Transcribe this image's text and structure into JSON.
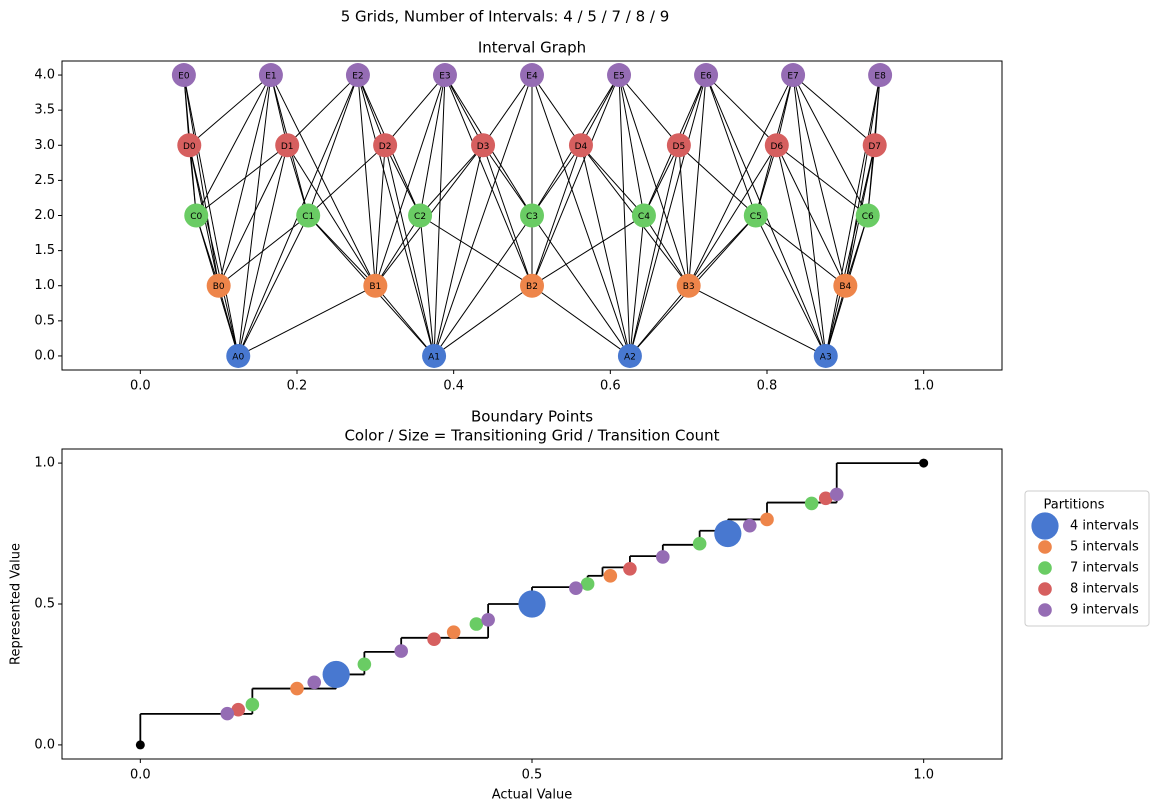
{
  "title": "5 Grids, Number of Intervals: 4 / 5 / 7 / 8 / 9",
  "chart_data": [
    {
      "type": "graph",
      "title": "Interval Graph",
      "xlim": [
        -0.1,
        1.1
      ],
      "ylim": [
        -0.2,
        4.2
      ],
      "xticks": [
        {
          "value": 0,
          "label": "0.0"
        },
        0.2,
        0.4,
        0.6,
        0.8,
        {
          "value": 1,
          "label": "1.0"
        }
      ],
      "yticks": [
        {
          "value": 0,
          "label": "0.0"
        },
        0.5,
        {
          "value": 1,
          "label": "1.0"
        },
        1.5,
        {
          "value": 2,
          "label": "2.0"
        },
        2.5,
        {
          "value": 3,
          "label": "3.0"
        },
        3.5,
        {
          "value": 4,
          "label": "4.0"
        }
      ],
      "nodes": [
        {
          "label": "A0",
          "x": 0.125,
          "y": 0,
          "color": "#4878d0"
        },
        {
          "label": "A1",
          "x": 0.375,
          "y": 0,
          "color": "#4878d0"
        },
        {
          "label": "A2",
          "x": 0.625,
          "y": 0,
          "color": "#4878d0"
        },
        {
          "label": "A3",
          "x": 0.875,
          "y": 0,
          "color": "#4878d0"
        },
        {
          "label": "B0",
          "x": 0.1,
          "y": 1,
          "color": "#ee854a"
        },
        {
          "label": "B1",
          "x": 0.3,
          "y": 1,
          "color": "#ee854a"
        },
        {
          "label": "B2",
          "x": 0.5,
          "y": 1,
          "color": "#ee854a"
        },
        {
          "label": "B3",
          "x": 0.7,
          "y": 1,
          "color": "#ee854a"
        },
        {
          "label": "B4",
          "x": 0.9,
          "y": 1,
          "color": "#ee854a"
        },
        {
          "label": "C0",
          "x": 0.0714,
          "y": 2,
          "color": "#6acc64"
        },
        {
          "label": "C1",
          "x": 0.2143,
          "y": 2,
          "color": "#6acc64"
        },
        {
          "label": "C2",
          "x": 0.3571,
          "y": 2,
          "color": "#6acc64"
        },
        {
          "label": "C3",
          "x": 0.5,
          "y": 2,
          "color": "#6acc64"
        },
        {
          "label": "C4",
          "x": 0.6429,
          "y": 2,
          "color": "#6acc64"
        },
        {
          "label": "C5",
          "x": 0.7857,
          "y": 2,
          "color": "#6acc64"
        },
        {
          "label": "C6",
          "x": 0.9286,
          "y": 2,
          "color": "#6acc64"
        },
        {
          "label": "D0",
          "x": 0.0625,
          "y": 3,
          "color": "#d65f5f"
        },
        {
          "label": "D1",
          "x": 0.1875,
          "y": 3,
          "color": "#d65f5f"
        },
        {
          "label": "D2",
          "x": 0.3125,
          "y": 3,
          "color": "#d65f5f"
        },
        {
          "label": "D3",
          "x": 0.4375,
          "y": 3,
          "color": "#d65f5f"
        },
        {
          "label": "D4",
          "x": 0.5625,
          "y": 3,
          "color": "#d65f5f"
        },
        {
          "label": "D5",
          "x": 0.6875,
          "y": 3,
          "color": "#d65f5f"
        },
        {
          "label": "D6",
          "x": 0.8125,
          "y": 3,
          "color": "#d65f5f"
        },
        {
          "label": "D7",
          "x": 0.9375,
          "y": 3,
          "color": "#d65f5f"
        },
        {
          "label": "E0",
          "x": 0.0556,
          "y": 4,
          "color": "#956cb4"
        },
        {
          "label": "E1",
          "x": 0.1667,
          "y": 4,
          "color": "#956cb4"
        },
        {
          "label": "E2",
          "x": 0.2778,
          "y": 4,
          "color": "#956cb4"
        },
        {
          "label": "E3",
          "x": 0.3889,
          "y": 4,
          "color": "#956cb4"
        },
        {
          "label": "E4",
          "x": 0.5,
          "y": 4,
          "color": "#956cb4"
        },
        {
          "label": "E5",
          "x": 0.6111,
          "y": 4,
          "color": "#956cb4"
        },
        {
          "label": "E6",
          "x": 0.7222,
          "y": 4,
          "color": "#956cb4"
        },
        {
          "label": "E7",
          "x": 0.8333,
          "y": 4,
          "color": "#956cb4"
        },
        {
          "label": "E8",
          "x": 0.9444,
          "y": 4,
          "color": "#956cb4"
        }
      ],
      "edges": [
        [
          0,
          4
        ],
        [
          0,
          5
        ],
        [
          1,
          5
        ],
        [
          1,
          6
        ],
        [
          2,
          6
        ],
        [
          2,
          7
        ],
        [
          3,
          7
        ],
        [
          3,
          8
        ],
        [
          0,
          9
        ],
        [
          0,
          10
        ],
        [
          1,
          10
        ],
        [
          1,
          11
        ],
        [
          1,
          12
        ],
        [
          2,
          12
        ],
        [
          2,
          13
        ],
        [
          2,
          14
        ],
        [
          3,
          14
        ],
        [
          3,
          15
        ],
        [
          0,
          16
        ],
        [
          0,
          17
        ],
        [
          1,
          18
        ],
        [
          1,
          19
        ],
        [
          2,
          20
        ],
        [
          2,
          21
        ],
        [
          3,
          22
        ],
        [
          3,
          23
        ],
        [
          0,
          24
        ],
        [
          0,
          25
        ],
        [
          0,
          26
        ],
        [
          1,
          26
        ],
        [
          1,
          27
        ],
        [
          1,
          28
        ],
        [
          2,
          28
        ],
        [
          2,
          29
        ],
        [
          2,
          30
        ],
        [
          3,
          30
        ],
        [
          3,
          31
        ],
        [
          3,
          32
        ],
        [
          4,
          9
        ],
        [
          4,
          10
        ],
        [
          5,
          10
        ],
        [
          5,
          11
        ],
        [
          6,
          11
        ],
        [
          6,
          12
        ],
        [
          6,
          13
        ],
        [
          7,
          13
        ],
        [
          7,
          14
        ],
        [
          8,
          14
        ],
        [
          8,
          15
        ],
        [
          4,
          16
        ],
        [
          4,
          17
        ],
        [
          5,
          17
        ],
        [
          5,
          18
        ],
        [
          5,
          19
        ],
        [
          6,
          19
        ],
        [
          6,
          20
        ],
        [
          7,
          20
        ],
        [
          7,
          21
        ],
        [
          7,
          22
        ],
        [
          8,
          22
        ],
        [
          8,
          23
        ],
        [
          4,
          24
        ],
        [
          4,
          25
        ],
        [
          5,
          25
        ],
        [
          5,
          26
        ],
        [
          5,
          27
        ],
        [
          6,
          27
        ],
        [
          6,
          28
        ],
        [
          6,
          29
        ],
        [
          7,
          29
        ],
        [
          7,
          30
        ],
        [
          7,
          31
        ],
        [
          8,
          31
        ],
        [
          8,
          32
        ],
        [
          9,
          16
        ],
        [
          9,
          17
        ],
        [
          10,
          17
        ],
        [
          10,
          18
        ],
        [
          11,
          18
        ],
        [
          11,
          19
        ],
        [
          12,
          19
        ],
        [
          12,
          20
        ],
        [
          13,
          20
        ],
        [
          13,
          21
        ],
        [
          14,
          21
        ],
        [
          14,
          22
        ],
        [
          15,
          22
        ],
        [
          15,
          23
        ],
        [
          9,
          24
        ],
        [
          9,
          25
        ],
        [
          10,
          25
        ],
        [
          10,
          26
        ],
        [
          11,
          26
        ],
        [
          11,
          27
        ],
        [
          12,
          27
        ],
        [
          12,
          28
        ],
        [
          12,
          29
        ],
        [
          13,
          29
        ],
        [
          13,
          30
        ],
        [
          14,
          30
        ],
        [
          14,
          31
        ],
        [
          15,
          31
        ],
        [
          15,
          32
        ],
        [
          16,
          24
        ],
        [
          16,
          25
        ],
        [
          17,
          25
        ],
        [
          17,
          26
        ],
        [
          18,
          26
        ],
        [
          18,
          27
        ],
        [
          19,
          27
        ],
        [
          19,
          28
        ],
        [
          20,
          28
        ],
        [
          20,
          29
        ],
        [
          21,
          29
        ],
        [
          21,
          30
        ],
        [
          22,
          30
        ],
        [
          22,
          31
        ],
        [
          23,
          31
        ],
        [
          23,
          32
        ]
      ]
    },
    {
      "type": "scatter",
      "title": "Boundary Points",
      "subtitle": "Color / Size = Transitioning Grid / Transition Count",
      "x_label": "Actual Value",
      "y_label": "Represented Value",
      "xlim": [
        -0.1,
        1.1
      ],
      "ylim": [
        -0.05,
        1.05
      ],
      "xticks": [
        {
          "value": 0,
          "label": "0.0"
        },
        0.5,
        {
          "value": 1,
          "label": "1.0"
        }
      ],
      "yticks": [
        {
          "value": 0,
          "label": "0.0"
        },
        0.5,
        {
          "value": 1,
          "label": "1.0"
        }
      ],
      "legend_title": "Partitions",
      "legend": "outside right",
      "step": {
        "color": "#000000",
        "x": [
          0,
          0,
          0.143,
          0.25,
          0.286,
          0.333,
          0.444,
          0.5,
          0.571,
          0.59,
          0.625,
          0.667,
          0.714,
          0.75,
          0.8,
          0.889,
          1.0
        ],
        "y": [
          0,
          0.11,
          0.2,
          0.25,
          0.33,
          0.38,
          0.5,
          0.56,
          0.6,
          0.63,
          0.67,
          0.71,
          0.76,
          0.8,
          0.86,
          1.0,
          1.0
        ]
      },
      "series": [
        {
          "name": "4 intervals",
          "color": "#4878d0",
          "x": [
            0.25,
            0.5,
            0.75
          ],
          "values": [
            0.25,
            0.5,
            0.75
          ],
          "sizes": [
            2,
            2,
            2
          ]
        },
        {
          "name": "5 intervals",
          "color": "#ee854a",
          "x": [
            0.2,
            0.4,
            0.6,
            0.8
          ],
          "values": [
            0.2,
            0.4,
            0.6,
            0.8
          ],
          "sizes": [
            1,
            1,
            1,
            1
          ]
        },
        {
          "name": "7 intervals",
          "color": "#6acc64",
          "x": [
            0.143,
            0.286,
            0.429,
            0.571,
            0.714,
            0.857
          ],
          "values": [
            0.143,
            0.286,
            0.429,
            0.571,
            0.714,
            0.857
          ],
          "sizes": [
            1,
            1,
            1,
            1,
            1,
            1
          ]
        },
        {
          "name": "8 intervals",
          "color": "#d65f5f",
          "x": [
            0.125,
            0.375,
            0.625,
            0.875
          ],
          "values": [
            0.125,
            0.375,
            0.625,
            0.875
          ],
          "sizes": [
            1,
            1,
            1,
            1
          ]
        },
        {
          "name": "9 intervals",
          "color": "#956cb4",
          "x": [
            0.111,
            0.222,
            0.333,
            0.444,
            0.556,
            0.667,
            0.778,
            0.889
          ],
          "values": [
            0.111,
            0.222,
            0.333,
            0.444,
            0.556,
            0.667,
            0.778,
            0.889
          ],
          "sizes": [
            1,
            1,
            1,
            1,
            1,
            1,
            1,
            1
          ]
        }
      ]
    }
  ]
}
